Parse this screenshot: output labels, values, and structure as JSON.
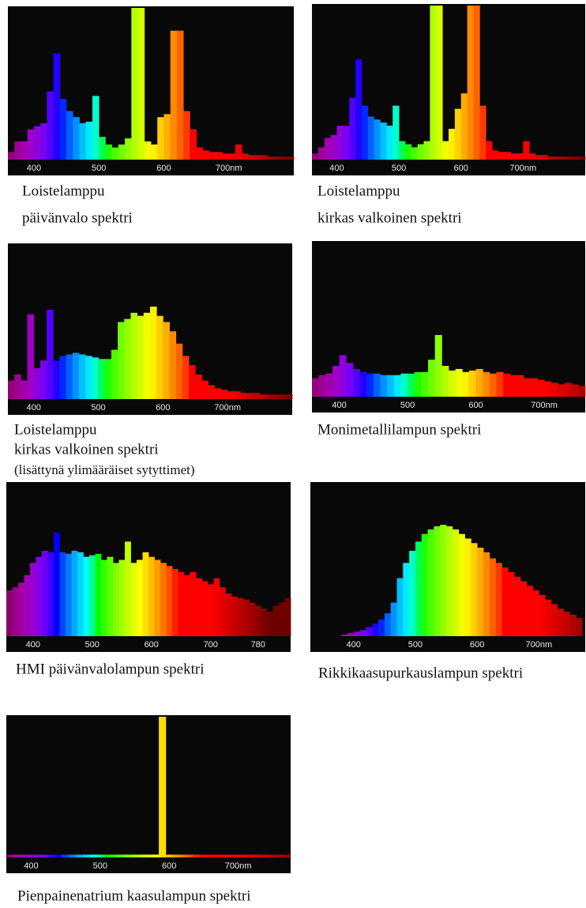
{
  "chart_data": [
    {
      "type": "bar",
      "caption": [
        "Loistelamppu",
        "päivänvalo spektri"
      ],
      "x": [
        365,
        375,
        385,
        395,
        405,
        415,
        425,
        435,
        445,
        455,
        465,
        475,
        485,
        495,
        505,
        515,
        525,
        535,
        545,
        555,
        565,
        575,
        585,
        595,
        605,
        615,
        625,
        635,
        645,
        655,
        665,
        675,
        685,
        695,
        705,
        715,
        725,
        735,
        745,
        755,
        765,
        775,
        785,
        795
      ],
      "values": [
        5,
        12,
        12,
        20,
        22,
        24,
        45,
        70,
        40,
        32,
        28,
        24,
        25,
        42,
        15,
        10,
        8,
        10,
        14,
        100,
        100,
        12,
        10,
        28,
        30,
        85,
        85,
        32,
        20,
        8,
        6,
        5,
        5,
        4,
        4,
        10,
        4,
        3,
        3,
        3,
        2,
        2,
        2,
        2
      ],
      "xlim": [
        360,
        800
      ],
      "ylim": [
        0,
        100
      ],
      "xticks": [
        400,
        500,
        600,
        {
          "value": 700,
          "label": "700nm"
        }
      ]
    },
    {
      "type": "bar",
      "caption": [
        "Loistelamppu",
        "kirkas valkoinen spektri"
      ],
      "x": [
        365,
        375,
        385,
        395,
        405,
        415,
        425,
        435,
        445,
        455,
        465,
        475,
        485,
        495,
        505,
        515,
        525,
        535,
        545,
        555,
        565,
        575,
        585,
        595,
        605,
        615,
        625,
        635,
        645,
        655,
        665,
        675,
        685,
        695,
        705,
        715,
        725,
        735,
        745,
        755,
        765,
        775,
        785,
        795
      ],
      "values": [
        4,
        8,
        14,
        16,
        22,
        22,
        40,
        65,
        35,
        28,
        26,
        24,
        22,
        35,
        12,
        10,
        8,
        10,
        12,
        100,
        100,
        12,
        20,
        33,
        43,
        100,
        100,
        35,
        12,
        6,
        5,
        5,
        4,
        4,
        12,
        4,
        3,
        3,
        2,
        2,
        2,
        2,
        2,
        2
      ],
      "xlim": [
        360,
        800
      ],
      "ylim": [
        0,
        100
      ],
      "xticks": [
        400,
        500,
        600,
        {
          "value": 700,
          "label": "700nm"
        }
      ]
    },
    {
      "type": "bar",
      "caption": [
        "Loistelamppu",
        "kirkas valkoinen spektri",
        "(lisättynä ylimääräiset sytyttimet)"
      ],
      "x": [
        365,
        375,
        385,
        395,
        405,
        415,
        425,
        435,
        445,
        455,
        465,
        475,
        485,
        495,
        505,
        515,
        525,
        535,
        545,
        555,
        565,
        575,
        585,
        595,
        605,
        615,
        625,
        635,
        645,
        655,
        665,
        675,
        685,
        695,
        705,
        715,
        725,
        735,
        745,
        755,
        765,
        775,
        785,
        795
      ],
      "values": [
        12,
        16,
        12,
        55,
        20,
        25,
        58,
        25,
        28,
        29,
        30,
        29,
        28,
        27,
        26,
        26,
        32,
        50,
        52,
        56,
        54,
        56,
        60,
        54,
        50,
        44,
        36,
        28,
        22,
        16,
        12,
        9,
        7,
        6,
        5,
        5,
        4,
        4,
        4,
        3,
        3,
        3,
        3,
        3
      ],
      "xlim": [
        360,
        800
      ],
      "ylim": [
        0,
        100
      ],
      "xticks": [
        400,
        500,
        600,
        {
          "value": 700,
          "label": "700nm"
        }
      ]
    },
    {
      "type": "bar",
      "caption": [
        "Monimetallilampun spektri"
      ],
      "x": [
        365,
        375,
        385,
        395,
        405,
        415,
        425,
        435,
        445,
        455,
        465,
        475,
        485,
        495,
        505,
        515,
        525,
        535,
        545,
        555,
        565,
        575,
        585,
        595,
        605,
        615,
        625,
        635,
        645,
        655,
        665,
        675,
        685,
        695,
        705,
        715,
        725,
        735,
        745,
        755
      ],
      "values": [
        12,
        14,
        15,
        20,
        27,
        22,
        18,
        16,
        15,
        15,
        14,
        14,
        14,
        15,
        15,
        16,
        16,
        24,
        40,
        20,
        17,
        18,
        16,
        17,
        18,
        16,
        15,
        16,
        15,
        14,
        14,
        12,
        12,
        11,
        10,
        9,
        8,
        9,
        8,
        7
      ],
      "xlim": [
        360,
        760
      ],
      "ylim": [
        0,
        100
      ],
      "xticks": [
        400,
        500,
        600,
        {
          "value": 700,
          "label": "700nm"
        }
      ]
    },
    {
      "type": "bar",
      "caption": [
        "HMI päivänvalolampun spektri"
      ],
      "x": [
        360,
        370,
        380,
        390,
        400,
        410,
        420,
        430,
        440,
        450,
        460,
        470,
        480,
        490,
        500,
        510,
        520,
        530,
        540,
        550,
        560,
        570,
        580,
        590,
        600,
        610,
        620,
        630,
        640,
        650,
        660,
        670,
        680,
        690,
        700,
        710,
        720,
        730,
        740,
        750,
        760,
        770,
        780,
        790,
        800,
        810,
        820,
        830
      ],
      "values": [
        30,
        32,
        35,
        40,
        48,
        52,
        56,
        55,
        68,
        55,
        54,
        56,
        55,
        52,
        53,
        54,
        50,
        52,
        48,
        50,
        62,
        48,
        50,
        55,
        52,
        50,
        48,
        46,
        44,
        42,
        40,
        42,
        38,
        36,
        34,
        38,
        32,
        28,
        26,
        25,
        24,
        22,
        20,
        18,
        16,
        20,
        22,
        25
      ],
      "xlim": [
        355,
        835
      ],
      "ylim": [
        0,
        100
      ],
      "xticks": [
        400,
        500,
        600,
        700,
        780
      ]
    },
    {
      "type": "bar",
      "caption": [
        "Rikkikaasupurkauslampun spektri"
      ],
      "x": [
        385,
        395,
        405,
        415,
        425,
        435,
        445,
        455,
        465,
        475,
        485,
        495,
        505,
        515,
        525,
        535,
        545,
        555,
        565,
        575,
        585,
        595,
        605,
        615,
        625,
        635,
        645,
        655,
        665,
        675,
        685,
        695,
        705,
        715,
        725,
        735,
        745,
        755,
        765
      ],
      "values": [
        1,
        2,
        3,
        4,
        6,
        8,
        11,
        15,
        22,
        38,
        48,
        56,
        62,
        67,
        70,
        72,
        73,
        72,
        70,
        67,
        64,
        61,
        58,
        55,
        51,
        48,
        45,
        42,
        39,
        36,
        33,
        30,
        27,
        24,
        21,
        18,
        16,
        14,
        12
      ],
      "xlim": [
        330,
        775
      ],
      "ylim": [
        0,
        100
      ],
      "xticks": [
        400,
        500,
        600,
        {
          "value": 700,
          "label": "700nm"
        }
      ]
    },
    {
      "type": "bar",
      "caption": [
        "Pienpainenatrium kaasulampun spektri"
      ],
      "x": [
        370,
        380,
        390,
        400,
        410,
        420,
        430,
        440,
        450,
        460,
        470,
        480,
        490,
        500,
        510,
        520,
        530,
        540,
        550,
        560,
        570,
        580,
        590,
        600,
        610,
        620,
        630,
        640,
        650,
        660,
        670,
        680,
        690,
        700,
        710,
        720,
        730,
        740,
        750,
        760,
        770
      ],
      "values": [
        2,
        2,
        2,
        2,
        2,
        2,
        2,
        2,
        2,
        2,
        2,
        2,
        2,
        2,
        2,
        2,
        2,
        2,
        2,
        2,
        2,
        2,
        100,
        2,
        2,
        2,
        2,
        2,
        2,
        2,
        2,
        2,
        2,
        2,
        2,
        2,
        2,
        2,
        2,
        2,
        2
      ],
      "xlim": [
        364,
        776
      ],
      "ylim": [
        0,
        100
      ],
      "xticks": [
        400,
        500,
        600,
        {
          "value": 700,
          "label": "700nm"
        }
      ]
    }
  ]
}
